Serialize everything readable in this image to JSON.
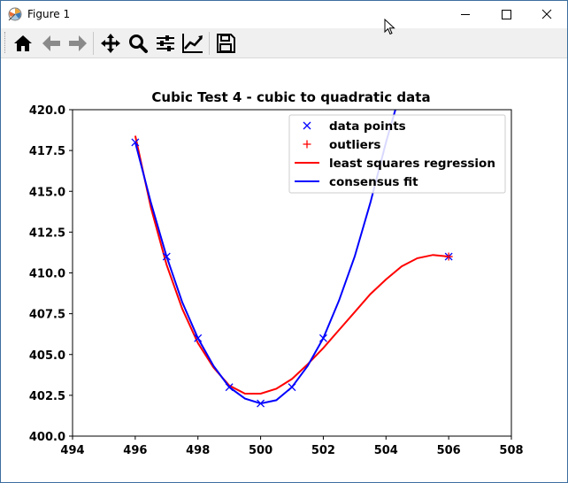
{
  "window": {
    "title": "Figure 1"
  },
  "toolbar": {
    "buttons": [
      {
        "icon": "home-icon",
        "tooltip": "Home"
      },
      {
        "icon": "back-arrow-icon",
        "tooltip": "Back"
      },
      {
        "icon": "forward-arrow-icon",
        "tooltip": "Forward"
      },
      {
        "icon": "pan-icon",
        "tooltip": "Pan"
      },
      {
        "icon": "zoom-icon",
        "tooltip": "Zoom"
      },
      {
        "icon": "subplots-icon",
        "tooltip": "Subplots"
      },
      {
        "icon": "edit-curves-icon",
        "tooltip": "Customize"
      },
      {
        "icon": "save-icon",
        "tooltip": "Save"
      }
    ]
  },
  "chart_data": {
    "type": "scatter",
    "title": "Cubic Test 4 - cubic to quadratic data",
    "xlabel": "",
    "ylabel": "",
    "xlim": [
      494,
      508
    ],
    "ylim": [
      400.0,
      420.0
    ],
    "xticks": [
      "494",
      "496",
      "498",
      "500",
      "502",
      "504",
      "506",
      "508"
    ],
    "yticks": [
      "400.0",
      "402.5",
      "405.0",
      "407.5",
      "410.0",
      "412.5",
      "415.0",
      "417.5",
      "420.0"
    ],
    "grid": false,
    "legend_position": "top-right",
    "legend": [
      "data points",
      "outliers",
      "least squares regression",
      "consensus fit"
    ],
    "series": [
      {
        "name": "data points",
        "kind": "marker-x",
        "color": "#0000ff",
        "x": [
          496,
          497,
          498,
          499,
          500,
          501,
          502,
          506
        ],
        "y": [
          418,
          411,
          406,
          403,
          402,
          403,
          406,
          411
        ]
      },
      {
        "name": "outliers",
        "kind": "marker-plus",
        "color": "#ff0000",
        "x": [
          506
        ],
        "y": [
          411
        ]
      },
      {
        "name": "least squares regression",
        "kind": "line",
        "color": "#ff0000",
        "x": [
          496.0,
          496.5,
          497.0,
          497.5,
          498.0,
          498.5,
          499.0,
          499.5,
          500.0,
          500.5,
          501.0,
          501.5,
          502.0,
          502.5,
          503.0,
          503.5,
          504.0,
          504.5,
          505.0,
          505.5,
          506.0
        ],
        "y": [
          418.4,
          414.0,
          410.5,
          407.8,
          405.7,
          404.2,
          403.1,
          402.6,
          402.6,
          402.9,
          403.5,
          404.4,
          405.4,
          406.5,
          407.6,
          408.7,
          409.6,
          410.4,
          410.9,
          411.1,
          411.0
        ]
      },
      {
        "name": "consensus fit",
        "kind": "line",
        "color": "#0000ff",
        "x": [
          496.0,
          496.5,
          497.0,
          497.5,
          498.0,
          498.5,
          499.0,
          499.5,
          500.0,
          500.5,
          501.0,
          501.5,
          502.0,
          502.5,
          503.0,
          503.5,
          504.0,
          504.3
        ],
        "y": [
          418.0,
          414.3,
          411.0,
          408.2,
          406.0,
          404.3,
          403.0,
          402.3,
          402.0,
          402.2,
          403.0,
          404.3,
          406.0,
          408.3,
          411.0,
          414.3,
          418.0,
          420.0
        ]
      }
    ]
  }
}
